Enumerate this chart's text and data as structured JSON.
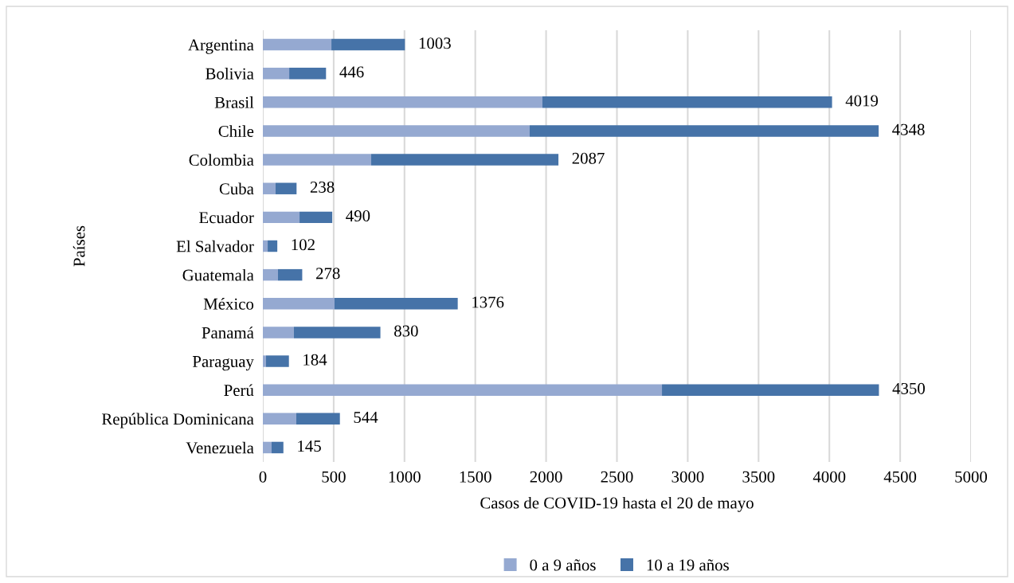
{
  "chart_data": {
    "type": "bar",
    "orientation": "horizontal",
    "stacked": true,
    "xlabel": "Casos de COVID-19 hasta el 20 de mayo",
    "ylabel": "Países",
    "categories": [
      "Argentina",
      "Bolivia",
      "Brasil",
      "Chile",
      "Colombia",
      "Cuba",
      "Ecuador",
      "El Salvador",
      "Guatemala",
      "México",
      "Panamá",
      "Paraguay",
      "Perú",
      "República Dominicana",
      "Venezuela"
    ],
    "series": [
      {
        "name": "0 a 9 años",
        "color": "#95a9d1",
        "values": [
          484,
          186,
          1974,
          1884,
          765,
          90,
          259,
          34,
          107,
          506,
          219,
          22,
          2818,
          236,
          62
        ]
      },
      {
        "name": "10 a 19 años",
        "color": "#4673a8",
        "values": [
          519,
          260,
          2045,
          2464,
          1322,
          148,
          231,
          68,
          171,
          870,
          611,
          162,
          1532,
          308,
          83
        ]
      }
    ],
    "totals": [
      "1003",
      "446",
      "4019",
      "4348",
      "2087",
      "238",
      "490",
      "102",
      "278",
      "1376",
      "830",
      "184",
      "4350",
      "544",
      "145"
    ],
    "xlim": [
      0,
      5000
    ],
    "xticks": [
      0,
      500,
      1000,
      1500,
      2000,
      2500,
      3000,
      3500,
      4000,
      4500,
      5000
    ],
    "grid": "x",
    "legend": "bottom"
  }
}
